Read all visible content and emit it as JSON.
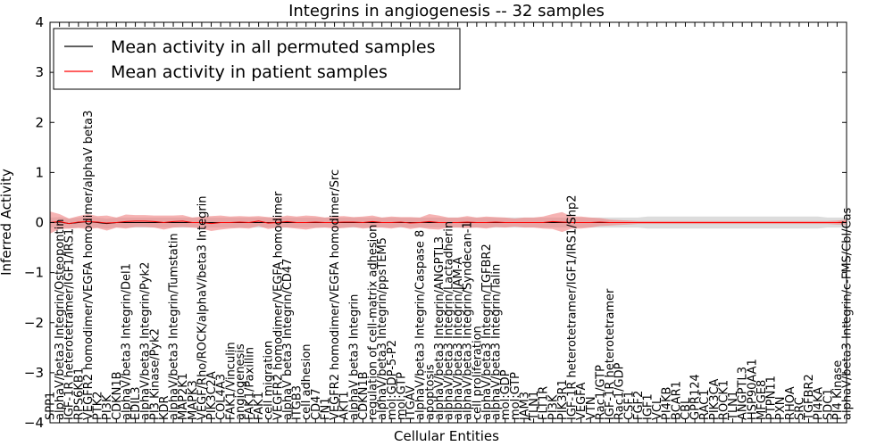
{
  "chart_data": {
    "type": "line",
    "title": "Integrins in angiogenesis -- 32 samples",
    "xlabel": "Cellular Entities",
    "ylabel": "Inferred Activity",
    "ylim": [
      -4,
      4
    ],
    "yticks": [
      -4,
      -3,
      -2,
      -1,
      0,
      1,
      2,
      3,
      4
    ],
    "grid": false,
    "legend_position": "top-left",
    "categories": [
      "SPP1",
      "alphaV/beta3 Integrin/Osteopontin",
      "IGF-1R heterotetramer/IGF1/IRS1",
      "RPS6KB1",
      "VEGFR2 homodimer/VEGFA homodimer/alphaV beta3",
      "PTK2",
      "PI3K",
      "CDKN1B",
      "alphaV/beta3 Integrin/Del1",
      "EDIL3",
      "alphaV/beta3 Integrin/Pyk2",
      "PI3 Kinase/Pyk2",
      "KDR",
      "alphaV/beta3 Integrin/Tumstatin",
      "MAP2K1",
      "MAPK3",
      "VEGF/Rho/ROCK/alphaV/beta3 Integrin",
      "PIK3C2A",
      "COL4A3",
      "FAK1/Vinculin",
      "angiogenesis",
      "FAK1/Paxillin",
      "FAK1",
      "cell migration",
      "VEGFR2 homodimer/VEGFA homodimer",
      "alphaV beta3 Integrin/CD47",
      "ITGB3",
      "cell adhesion",
      "CD47",
      "FN1",
      "VEGFR2 homodimer/VEGFA homodimer/Src",
      "AKT1",
      "alphaV beta3 Integrin",
      "CDKN1B",
      "regulation of cell-matrix adhesion",
      "alphaV/beta3 Integrin/ppsTEM5",
      "mol:GDP-5-P2",
      "mol:GTP",
      "ITGAV",
      "alphaV/beta3 Integrin/Caspase 8",
      "apoptosis",
      "alphaV/beta3 Integrin/ANGPTL3",
      "alphaV/beta3 Integrin/Lactadherin",
      "alphaV/beta3 Integrin/JAM-A",
      "alphaV/beta3 Integrin/Syndecan-1",
      "cell proliferation",
      "alphaV/beta3 Integrin/TGFBR2",
      "alphaV/beta3 Integrin/Talin",
      "mol:GDP",
      "mol:GTP",
      "JAM3",
      "TLN1",
      "FLT1R",
      "PI3K",
      "PIK3R1",
      "IGF-1R heterotetramer/IGF1/IRS1/Shp2",
      "VEGFA",
      "VTN",
      "Rac1/GTP",
      "IGF-1R heterotetramer",
      "Rac1/GDP",
      "CSF1",
      "FGF2",
      "IGF1",
      "VCL",
      "PI4KB",
      "BCAR1",
      "CBL",
      "GPR124",
      "RAC1",
      "PIK3CA",
      "ROCK1",
      "TLN1",
      "ANGPTL3",
      "HSP90AA1",
      "MFGE8",
      "PTPN11",
      "PXN",
      "RHOA",
      "SRC",
      "TGFBR2",
      "PI4KA",
      "SDC1",
      "PI4 Kinase",
      "alphaV/beta3 Integrin/c-FMS/Cbl/Cas"
    ],
    "series": [
      {
        "name": "Mean activity in all permuted samples",
        "color": "#000000",
        "band_color": "#bfbfbf",
        "mean": [
          0.0,
          0.01,
          -0.02,
          0.0,
          0.02,
          0.0,
          -0.02,
          0.0,
          0.0,
          0.0,
          0.0,
          0.0,
          0.0,
          0.0,
          0.0,
          0.0,
          0.0,
          0.0,
          0.0,
          0.0,
          0.0,
          0.0,
          0.0,
          0.0,
          0.0,
          0.0,
          0.0,
          0.0,
          0.0,
          0.0,
          0.0,
          0.0,
          0.0,
          0.0,
          0.0,
          0.0,
          0.0,
          0.0,
          0.0,
          0.0,
          0.0,
          0.0,
          0.0,
          0.0,
          0.0,
          0.0,
          0.0,
          0.0,
          0.0,
          0.0,
          0.0,
          0.0,
          0.0,
          0.0,
          0.0,
          0.0,
          0.0,
          0.0,
          0.0,
          0.0,
          0.0,
          0.0,
          0.0,
          0.0,
          0.0,
          0.0,
          0.0,
          0.0,
          0.0,
          0.0,
          0.0,
          0.0,
          0.0,
          0.0,
          0.0,
          0.0,
          0.0,
          0.0,
          0.0,
          0.0,
          0.0,
          0.0,
          0.0,
          0.0,
          0.0
        ],
        "band": [
          0.1,
          0.1,
          0.1,
          0.1,
          0.1,
          0.1,
          0.1,
          0.1,
          0.1,
          0.1,
          0.1,
          0.1,
          0.1,
          0.1,
          0.1,
          0.1,
          0.1,
          0.1,
          0.1,
          0.1,
          0.1,
          0.1,
          0.1,
          0.1,
          0.1,
          0.1,
          0.1,
          0.1,
          0.1,
          0.1,
          0.1,
          0.1,
          0.1,
          0.1,
          0.1,
          0.1,
          0.1,
          0.1,
          0.1,
          0.1,
          0.1,
          0.1,
          0.1,
          0.1,
          0.1,
          0.1,
          0.1,
          0.1,
          0.1,
          0.1,
          0.1,
          0.1,
          0.1,
          0.1,
          0.1,
          0.1,
          0.1,
          0.1,
          0.1,
          0.1,
          0.1,
          0.1,
          0.1,
          0.12,
          0.12,
          0.12,
          0.12,
          0.12,
          0.12,
          0.12,
          0.12,
          0.12,
          0.12,
          0.12,
          0.12,
          0.12,
          0.12,
          0.12,
          0.12,
          0.12,
          0.12,
          0.12,
          0.1,
          0.1,
          0.1
        ]
      },
      {
        "name": "Mean activity in patient samples",
        "color": "#ff0000",
        "band_color": "#f08080",
        "mean": [
          0.0,
          0.02,
          -0.02,
          0.01,
          0.02,
          0.01,
          -0.01,
          0.0,
          0.02,
          0.03,
          0.03,
          0.02,
          0.0,
          0.02,
          0.03,
          0.0,
          0.0,
          -0.02,
          0.0,
          0.0,
          0.01,
          0.0,
          0.03,
          -0.01,
          0.0,
          0.02,
          0.0,
          0.0,
          0.01,
          0.0,
          0.0,
          0.01,
          0.01,
          0.0,
          0.02,
          0.0,
          0.0,
          0.01,
          -0.01,
          0.0,
          0.02,
          0.0,
          0.0,
          0.0,
          0.01,
          0.0,
          0.0,
          0.01,
          0.0,
          0.0,
          0.0,
          0.0,
          0.0,
          0.02,
          0.01,
          0.0,
          0.0,
          0.0,
          0.01,
          0.0,
          0.0,
          0.0,
          0.0,
          0.0,
          0.0,
          0.0,
          0.0,
          0.0,
          0.0,
          0.0,
          0.0,
          0.0,
          0.0,
          0.0,
          0.0,
          0.0,
          0.0,
          0.0,
          0.0,
          0.0,
          0.0,
          0.0,
          0.0,
          0.0,
          0.01
        ],
        "band": [
          0.22,
          0.15,
          0.1,
          0.12,
          0.15,
          0.12,
          0.15,
          0.1,
          0.14,
          0.12,
          0.12,
          0.12,
          0.14,
          0.12,
          0.12,
          0.1,
          0.12,
          0.15,
          0.14,
          0.12,
          0.12,
          0.12,
          0.1,
          0.12,
          0.1,
          0.12,
          0.12,
          0.14,
          0.12,
          0.1,
          0.12,
          0.12,
          0.1,
          0.12,
          0.12,
          0.1,
          0.12,
          0.1,
          0.12,
          0.1,
          0.15,
          0.14,
          0.1,
          0.1,
          0.12,
          0.1,
          0.12,
          0.1,
          0.1,
          0.08,
          0.1,
          0.1,
          0.12,
          0.15,
          0.2,
          0.12,
          0.12,
          0.1,
          0.08,
          0.06,
          0.05,
          0.04,
          0.03,
          0.03,
          0.03,
          0.03,
          0.03,
          0.03,
          0.03,
          0.03,
          0.03,
          0.03,
          0.03,
          0.03,
          0.03,
          0.03,
          0.03,
          0.03,
          0.03,
          0.03,
          0.03,
          0.03,
          0.03,
          0.04,
          0.05
        ]
      }
    ]
  }
}
